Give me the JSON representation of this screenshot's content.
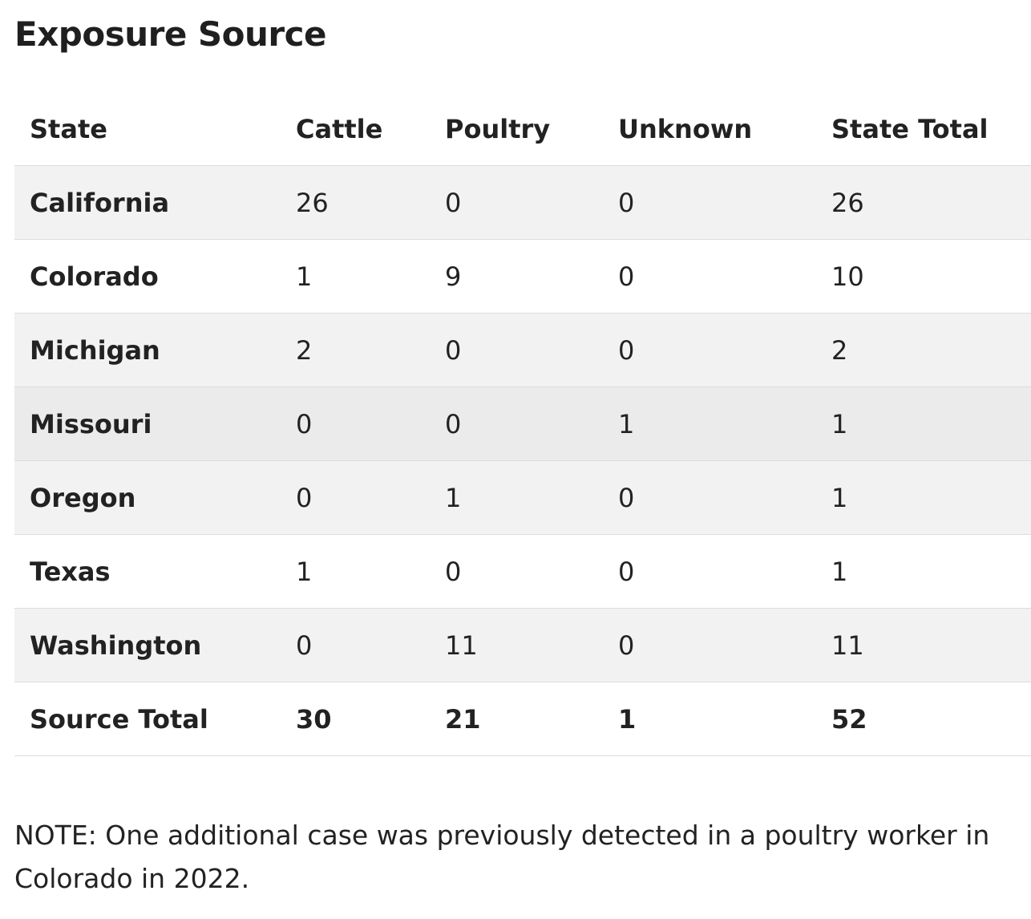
{
  "title": "Exposure Source",
  "table": {
    "headers": [
      "State",
      "Cattle",
      "Poultry",
      "Unknown",
      "State Total"
    ],
    "rows": [
      [
        "California",
        26,
        0,
        0,
        26
      ],
      [
        "Colorado",
        1,
        9,
        0,
        10
      ],
      [
        "Michigan",
        2,
        0,
        0,
        2
      ],
      [
        "Missouri",
        0,
        0,
        1,
        1
      ],
      [
        "Oregon",
        0,
        1,
        0,
        1
      ],
      [
        "Texas",
        1,
        0,
        0,
        1
      ],
      [
        "Washington",
        0,
        11,
        0,
        11
      ]
    ],
    "footer": [
      "Source Total",
      30,
      21,
      1,
      52
    ]
  },
  "note": "NOTE: One additional case was previously detected in a poultry worker in Colorado in 2022."
}
